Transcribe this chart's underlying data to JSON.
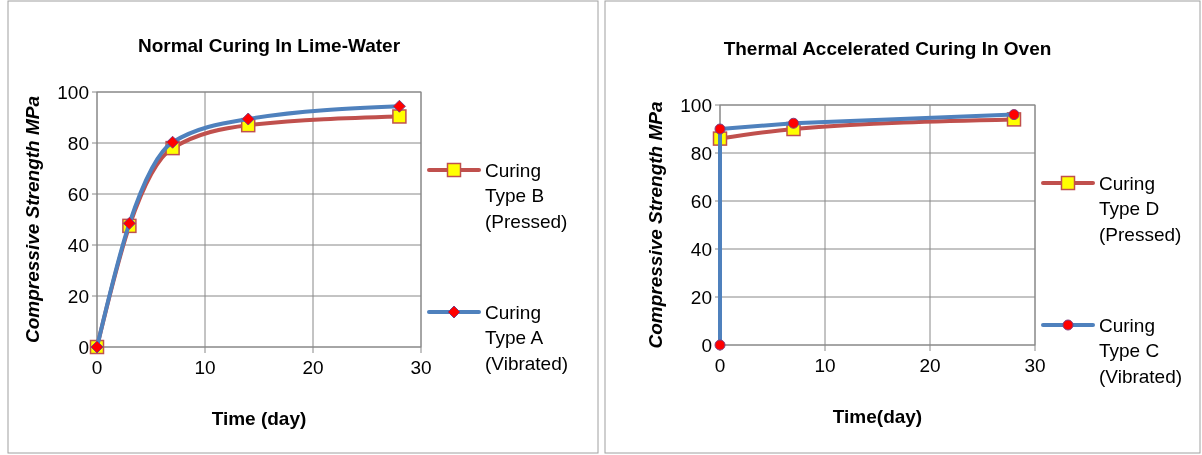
{
  "chart_data": [
    {
      "type": "line",
      "title": "Normal Curing In Lime-Water",
      "xlabel": "Time (day)",
      "ylabel": "Compressive Strength MPa",
      "xlim": [
        0,
        30
      ],
      "xticks": [
        0,
        10,
        20,
        30
      ],
      "ylim": [
        0,
        100
      ],
      "yticks": [
        0,
        20,
        40,
        60,
        80,
        100
      ],
      "grid": true,
      "legend": "right",
      "series": [
        {
          "name": "Curing Type B (Pressed)",
          "color": "#c0504d",
          "marker": "square",
          "x": [
            0,
            3,
            7,
            14,
            28
          ],
          "values": [
            0,
            47.5,
            78,
            87,
            90.4
          ]
        },
        {
          "name": "Curing Type A (Vibrated)",
          "color": "#4f81bd",
          "marker": "diamond",
          "x": [
            0,
            3,
            7,
            14,
            28
          ],
          "values": [
            0,
            48.5,
            80.3,
            89.4,
            94.4
          ]
        }
      ]
    },
    {
      "type": "line",
      "title": "Thermal Accelerated Curing In Oven",
      "xlabel": "Time(day)",
      "ylabel": "Compressive Strength MPa",
      "xlim": [
        0,
        30
      ],
      "xticks": [
        0,
        10,
        20,
        30
      ],
      "ylim": [
        0,
        100
      ],
      "yticks": [
        0,
        20,
        40,
        60,
        80,
        100
      ],
      "grid": true,
      "legend": "right",
      "series": [
        {
          "name": "Curing Type D (Pressed)",
          "color": "#c0504d",
          "marker": "square",
          "x": [
            0,
            7,
            28
          ],
          "values": [
            86,
            90,
            94
          ]
        },
        {
          "name": "Curing Type C (Vibrated)",
          "color": "#4f81bd",
          "marker": "circle",
          "x": [
            0,
            0,
            7,
            28
          ],
          "values": [
            0,
            90,
            92.4,
            96
          ]
        }
      ]
    }
  ]
}
